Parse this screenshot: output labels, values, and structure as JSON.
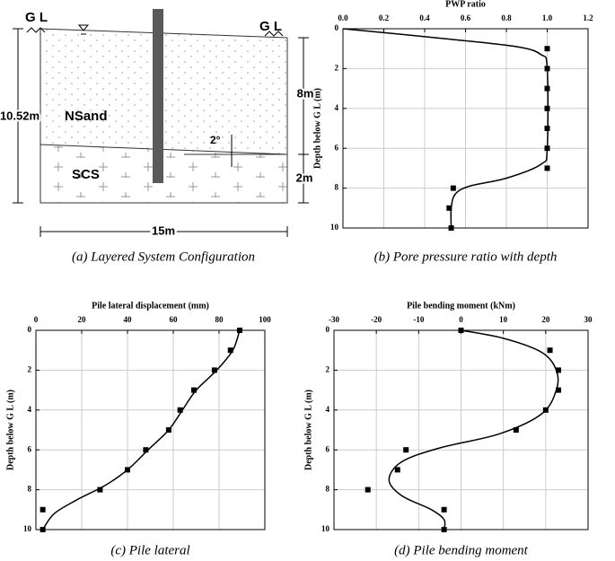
{
  "diagram": {
    "gl_left": "G L",
    "gl_right": "G L",
    "layer_top": "NSand",
    "layer_bottom": "SCS",
    "total_depth": "10.52m",
    "top_depth": "8m",
    "bottom_depth": "2m",
    "width": "15m",
    "angle": "2°",
    "caption": "(a) Layered System Configuration"
  },
  "chart_data": [
    {
      "type": "line",
      "title": "PWP ratio",
      "y_label": "Depth below G L (m)",
      "caption": "(b) Pore pressure ratio with depth",
      "xlim": [
        0,
        1.2
      ],
      "xticks": [
        {
          "value": 0,
          "label": "0.0"
        },
        0.2,
        0.4,
        0.6,
        0.8,
        {
          "value": 1,
          "label": "1.0"
        },
        1.2
      ],
      "ylim": [
        0,
        10
      ],
      "yticks": [
        0,
        2,
        4,
        6,
        8,
        10
      ],
      "y_reversed": true,
      "grid": true,
      "series": [
        {
          "mode": "line",
          "color": "#000000",
          "x": [
            0,
            0.5,
            0.85,
            0.97,
            1.0,
            1.0,
            0.97,
            0.8,
            0.62,
            0.55,
            0.53,
            0.53
          ],
          "y": [
            0,
            0.5,
            0.9,
            1.3,
            2,
            6,
            6.8,
            7.5,
            7.9,
            8.3,
            9,
            10
          ]
        },
        {
          "mode": "markers",
          "color": "#000000",
          "x": [
            1.0,
            1.0,
            1.0,
            1.0,
            1.0,
            1.0,
            1.0,
            0.54,
            0.52,
            0.53
          ],
          "y": [
            1,
            2,
            3,
            4,
            5,
            6,
            7,
            8,
            9,
            10
          ]
        }
      ]
    },
    {
      "type": "line",
      "title": "Pile lateral displacement (mm)",
      "y_label": "Depth below G L (m)",
      "caption": "(c) Pile lateral",
      "xlim": [
        0,
        100
      ],
      "xticks": [
        0,
        20,
        40,
        60,
        80,
        100
      ],
      "ylim": [
        0,
        10
      ],
      "yticks": [
        0,
        2,
        4,
        6,
        8,
        10
      ],
      "y_reversed": true,
      "grid": true,
      "series": [
        {
          "mode": "line",
          "color": "#000000",
          "x": [
            89,
            86,
            79,
            70,
            64,
            58,
            49,
            40,
            30,
            18,
            8,
            3
          ],
          "y": [
            0,
            1,
            2,
            3,
            4,
            5,
            6,
            7,
            7.8,
            8.5,
            9.2,
            10
          ]
        },
        {
          "mode": "markers",
          "color": "#000000",
          "x": [
            89,
            85,
            78,
            69,
            63,
            58,
            48,
            40,
            28,
            3,
            3
          ],
          "y": [
            0,
            1,
            2,
            3,
            4,
            5,
            6,
            7,
            8,
            9,
            10
          ]
        }
      ]
    },
    {
      "type": "line",
      "title": "Pile bending moment (kNm)",
      "y_label": "Depth below G L (m)",
      "caption": "(d) Pile bending moment",
      "xlim": [
        -30,
        30
      ],
      "xticks": [
        -30,
        -20,
        -10,
        0,
        10,
        20,
        30
      ],
      "ylim": [
        0,
        10
      ],
      "yticks": [
        0,
        2,
        4,
        6,
        8,
        10
      ],
      "y_reversed": true,
      "grid": true,
      "series": [
        {
          "mode": "line",
          "color": "#000000",
          "x": [
            0,
            10,
            19,
            22.5,
            22.5,
            19,
            9,
            -5,
            -14,
            -17,
            -14,
            -7,
            -4,
            -4
          ],
          "y": [
            0,
            0.4,
            1.1,
            2,
            3,
            4.2,
            5.2,
            5.9,
            6.6,
            7.5,
            8.3,
            9,
            9.5,
            10
          ]
        },
        {
          "mode": "markers",
          "color": "#000000",
          "x": [
            0,
            21,
            23,
            23,
            20,
            13,
            -13,
            -15,
            -22,
            -4,
            -4
          ],
          "y": [
            0,
            1,
            2,
            3,
            4,
            5,
            6,
            7,
            8,
            9,
            10
          ]
        }
      ]
    }
  ]
}
